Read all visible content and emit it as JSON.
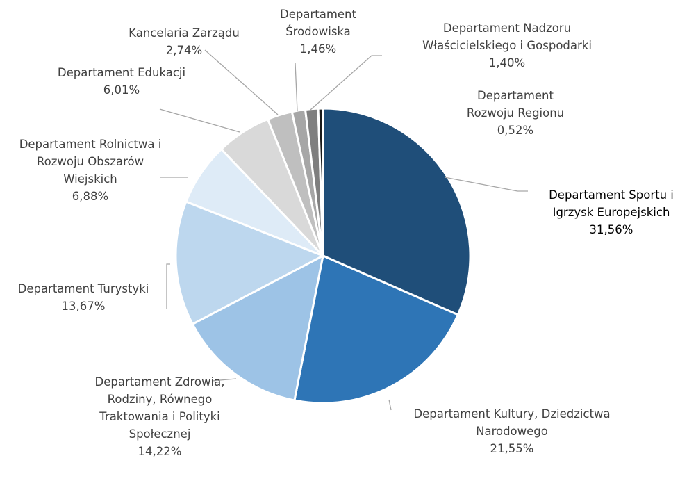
{
  "chart_data": {
    "type": "pie",
    "categories": [
      "Departament Sportu i Igrzysk Europejskich",
      "Departament Kultury, Dziedzictwa Narodowego",
      "Departament Zdrowia, Rodziny, Równego Traktowania i Polityki Społecznej",
      "Departament Turystyki",
      "Departament Rolnictwa i Rozwoju Obszarów Wiejskich",
      "Departament Edukacji",
      "Kancelaria Zarządu",
      "Departament Środowiska",
      "Departament Nadzoru Właścicielskiego i Gospodarki",
      "Departament Rozwoju Regionu"
    ],
    "values": [
      31.56,
      21.55,
      14.22,
      13.67,
      6.88,
      6.01,
      2.74,
      1.46,
      1.4,
      0.52
    ],
    "value_labels": [
      "31,56%",
      "21,55%",
      "14,22%",
      "13,67%",
      "6,88%",
      "6,01%",
      "2,74%",
      "1,46%",
      "1,40%",
      "0,52%"
    ],
    "colors": [
      "#1f4e79",
      "#2e75b6",
      "#9dc3e6",
      "#bdd7ee",
      "#deebf7",
      "#d9d9d9",
      "#bfbfbf",
      "#a6a6a6",
      "#7f7f7f",
      "#1a1a1a"
    ]
  }
}
